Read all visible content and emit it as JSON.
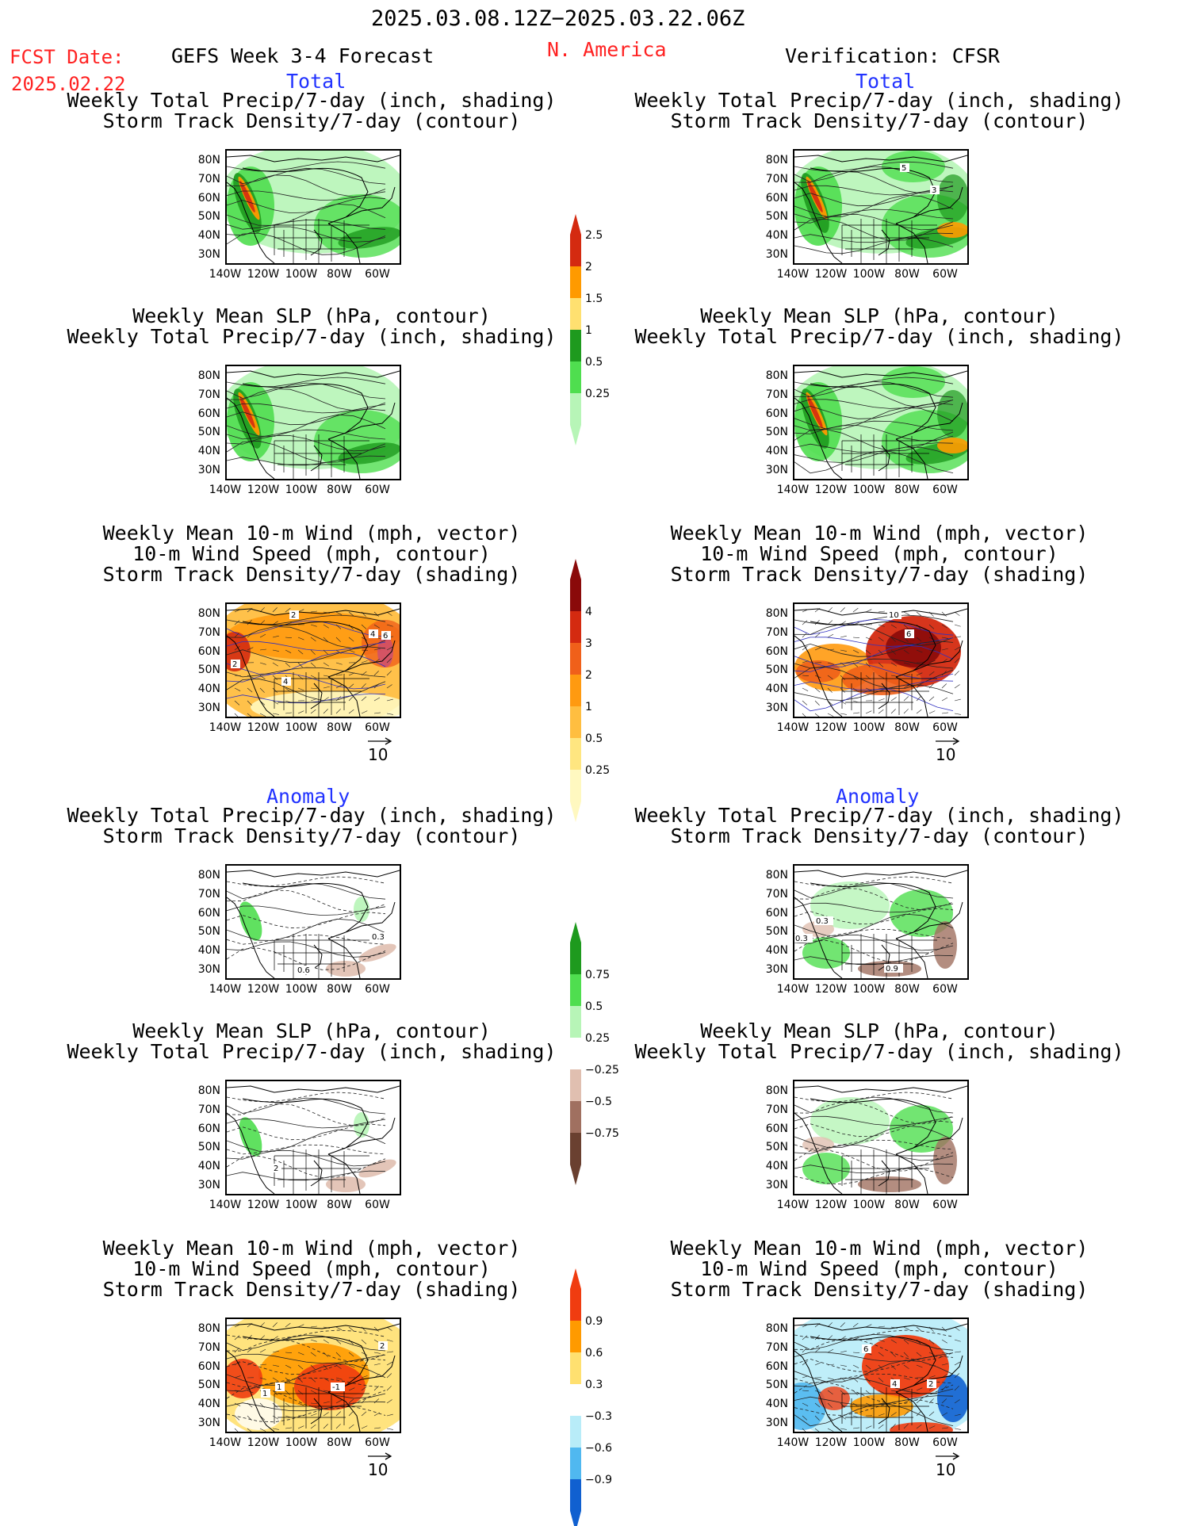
{
  "header": {
    "date_range": "2025.03.08.12Z−2025.03.22.06Z",
    "fcst_label": "FCST Date:",
    "fcst_date": "2025.02.22",
    "model": "GEFS Week 3-4 Forecast",
    "region": "N. America",
    "verification": "Verification: CFSR"
  },
  "sections": {
    "total": "Total",
    "anomaly": "Anomaly"
  },
  "titles": {
    "precip_storm": [
      "Weekly Total Precip/7-day (inch, shading)",
      "Storm Track Density/7-day (contour)"
    ],
    "slp_precip": [
      "Weekly Mean SLP (hPa, contour)",
      "Weekly Total Precip/7-day (inch, shading)"
    ],
    "wind": [
      "Weekly Mean 10-m Wind (mph, vector)",
      "10-m Wind Speed (mph, contour)",
      "Storm Track Density/7-day (shading)"
    ]
  },
  "axes": {
    "lat": [
      "80N",
      "70N",
      "60N",
      "50N",
      "40N",
      "30N"
    ],
    "lon": [
      "140W",
      "120W",
      "100W",
      "80W",
      "60W"
    ]
  },
  "vector_ref": "10",
  "colorbars": {
    "precip_total": [
      "2.5",
      "2",
      "1.5",
      "1",
      "0.5",
      "0.25"
    ],
    "storm_total": [
      "4",
      "3",
      "2",
      "1",
      "0.5",
      "0.25"
    ],
    "precip_anom": [
      "0.75",
      "0.5",
      "0.25",
      "−0.25",
      "−0.5",
      "−0.75"
    ],
    "storm_anom": [
      "0.9",
      "0.6",
      "0.3",
      "−0.3",
      "−0.6",
      "−0.9"
    ]
  },
  "colors": {
    "precip_total": [
      "#d42a10",
      "#ff9a00",
      "#ffe070",
      "#1e9a1e",
      "#4fde4f",
      "#b7f5b7"
    ],
    "storm_total": [
      "#8a0a0a",
      "#d42a10",
      "#f0601a",
      "#ff9a10",
      "#ffbe40",
      "#ffe680",
      "#fff8c0"
    ],
    "precip_anom": [
      "#1e9a1e",
      "#4fde4f",
      "#b7f5b7",
      "#ffffff",
      "#e0bfb0",
      "#a07060",
      "#6a4030"
    ],
    "storm_anom": [
      "#f03c10",
      "#ff9a00",
      "#ffe070",
      "#ffffff",
      "#b8ecf8",
      "#50b8f0",
      "#1060d0"
    ]
  },
  "contour_labels": {
    "a_tl": [],
    "a_tr": [
      "5",
      "3"
    ],
    "c_tl": [
      "2",
      "4",
      "6",
      "2",
      "4"
    ],
    "c_tr": [
      "10",
      "6"
    ],
    "d_tl": [
      "0.3",
      "0.6"
    ],
    "d_tr": [
      "0.3",
      "0.3",
      "0.9"
    ],
    "e_tl": [
      "2"
    ],
    "e_tr": [],
    "f_tl": [
      "2",
      "1",
      "1",
      "-1"
    ],
    "f_tr": [
      "6",
      "4",
      "2"
    ]
  }
}
